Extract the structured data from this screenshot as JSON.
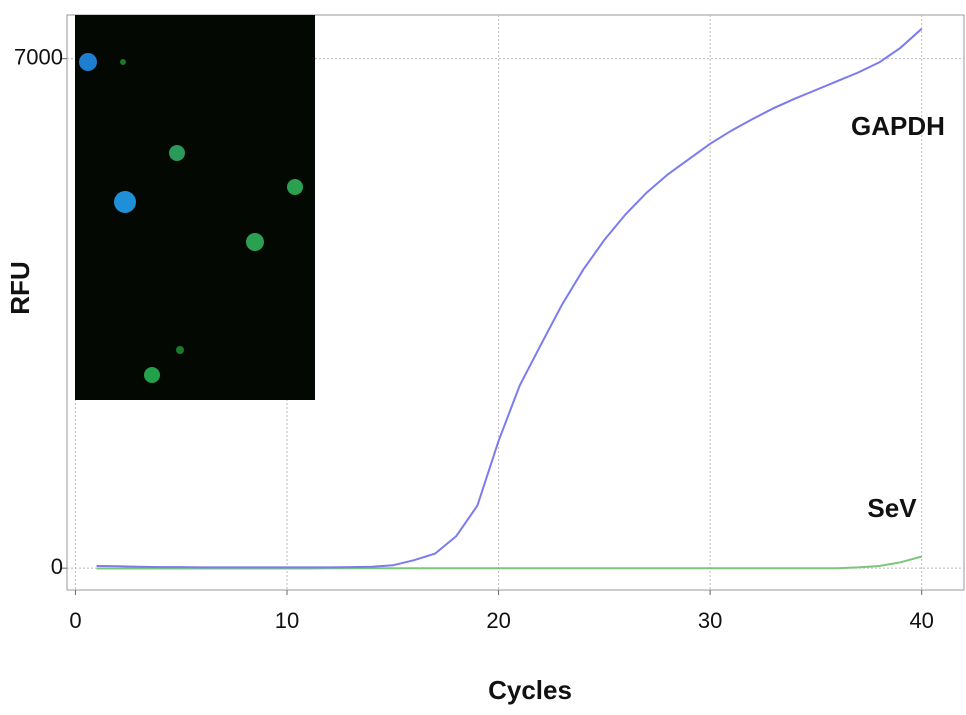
{
  "chart_data": {
    "type": "line",
    "x_label": "Cycles",
    "y_label": "RFU",
    "x": [
      1,
      2,
      3,
      4,
      5,
      6,
      7,
      8,
      9,
      10,
      11,
      12,
      13,
      14,
      15,
      16,
      17,
      18,
      19,
      20,
      21,
      22,
      23,
      24,
      25,
      26,
      27,
      28,
      29,
      30,
      31,
      32,
      33,
      34,
      35,
      36,
      37,
      38,
      39,
      40
    ],
    "series": [
      {
        "name": "GAPDH",
        "color": "#7b7bf0",
        "values": [
          30,
          25,
          20,
          15,
          15,
          10,
          10,
          10,
          10,
          10,
          10,
          10,
          15,
          20,
          40,
          110,
          200,
          440,
          860,
          1750,
          2510,
          3070,
          3620,
          4100,
          4510,
          4860,
          5160,
          5410,
          5620,
          5830,
          6010,
          6170,
          6320,
          6450,
          6570,
          6690,
          6810,
          6950,
          7150,
          7410
        ]
      },
      {
        "name": "SeV",
        "color": "#7cc67c",
        "values": [
          -5,
          -5,
          -5,
          -5,
          -5,
          -5,
          -5,
          -5,
          -5,
          -5,
          -5,
          0,
          0,
          0,
          0,
          0,
          0,
          0,
          0,
          0,
          0,
          0,
          0,
          0,
          0,
          0,
          0,
          0,
          0,
          0,
          0,
          0,
          0,
          0,
          0,
          0,
          10,
          30,
          80,
          160
        ]
      }
    ],
    "xlim": [
      -0.4,
      42
    ],
    "xticks": [
      0,
      10,
      20,
      30,
      40
    ],
    "ylim": [
      -300,
      7600
    ],
    "yticks": [
      0,
      7000
    ],
    "grid": true
  }
}
